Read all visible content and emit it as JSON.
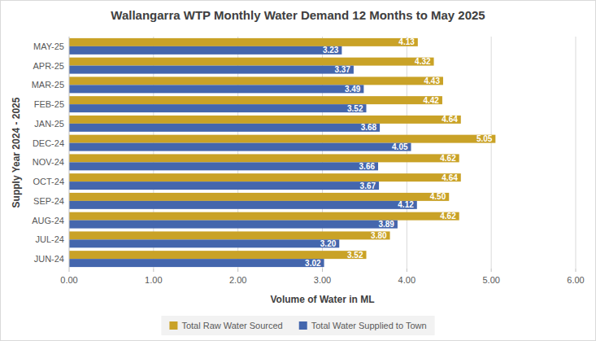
{
  "chart_data": {
    "type": "bar",
    "orientation": "horizontal",
    "title": "Wallangarra WTP Monthly Water Demand 12 Months to May 2025",
    "x_label": "Volume of Water in ML",
    "y_label": "Supply Year 2024 - 2025",
    "categories": [
      "JUN-24",
      "JUL-24",
      "AUG-24",
      "SEP-24",
      "OCT-24",
      "NOV-24",
      "DEC-24",
      "JAN-25",
      "FEB-25",
      "MAR-25",
      "APR-25",
      "MAY-25"
    ],
    "series": [
      {
        "name": "Total Raw Water Sourced",
        "color": "#c9a227",
        "values": [
          3.52,
          3.8,
          4.62,
          4.5,
          4.64,
          4.62,
          5.05,
          4.64,
          4.42,
          4.43,
          4.32,
          4.13
        ],
        "value_labels": [
          "3.52",
          "3.80",
          "4.62",
          "4.50",
          "4.64",
          "4.62",
          "5.05",
          "4.64",
          "4.42",
          "4.43",
          "4.32",
          "4.13"
        ]
      },
      {
        "name": "Total Water Supplied to Town",
        "color": "#4466ad",
        "values": [
          3.02,
          3.2,
          3.89,
          4.12,
          3.67,
          3.66,
          4.05,
          3.68,
          3.52,
          3.49,
          3.37,
          3.23
        ],
        "value_labels": [
          "3.02",
          "3.20",
          "3.89",
          "4.12",
          "3.67",
          "3.66",
          "4.05",
          "3.68",
          "3.52",
          "3.49",
          "3.37",
          "3.23"
        ]
      }
    ],
    "xlim": [
      0,
      6
    ],
    "xticks": [
      {
        "value": 0,
        "label": "0.00"
      },
      {
        "value": 1,
        "label": "1.00"
      },
      {
        "value": 2,
        "label": "2.00"
      },
      {
        "value": 3,
        "label": "3.00"
      },
      {
        "value": 4,
        "label": "4.00"
      },
      {
        "value": 5,
        "label": "5.00"
      },
      {
        "value": 6,
        "label": "6.00"
      }
    ],
    "grid": true,
    "legend": "bottom",
    "data_labels": true
  }
}
